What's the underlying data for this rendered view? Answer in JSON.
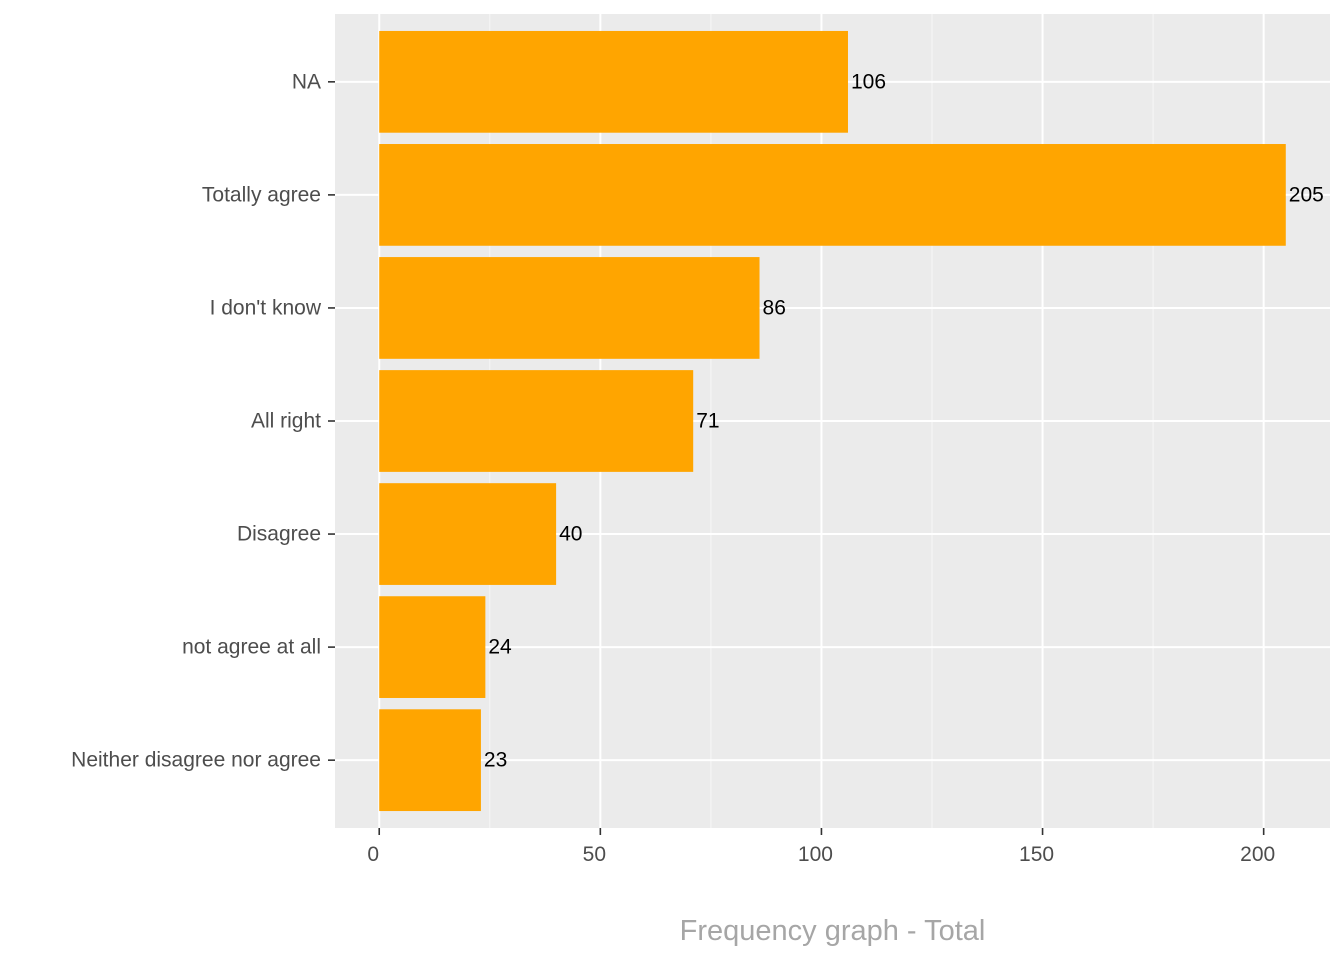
{
  "chart_data": {
    "type": "bar",
    "orientation": "horizontal",
    "categories": [
      "NA",
      "Totally agree",
      "I don't know",
      "All right",
      "Disagree",
      "not agree at all",
      "Neither disagree nor agree"
    ],
    "values": [
      106,
      205,
      86,
      71,
      40,
      24,
      23
    ],
    "data_labels": [
      "106",
      "205",
      "86",
      "71",
      "40",
      "24",
      "23"
    ],
    "xlabel": "Frequency graph - Total",
    "ylabel": "",
    "title": "",
    "xlim": [
      -10,
      215
    ],
    "x_ticks": [
      0,
      50,
      100,
      150,
      200
    ],
    "x_tick_labels": [
      "0",
      "50",
      "100",
      "150",
      "200"
    ],
    "grid": true,
    "legend": "none",
    "colors": {
      "bar": "#FFA500",
      "panel_background": "#EBEBEB",
      "grid_major": "#FFFFFF",
      "grid_minor": "#F5F5F5",
      "axis_title": "#A6A6A6",
      "tick_text": "#4D4D4D",
      "data_label_text": "#000000"
    }
  }
}
